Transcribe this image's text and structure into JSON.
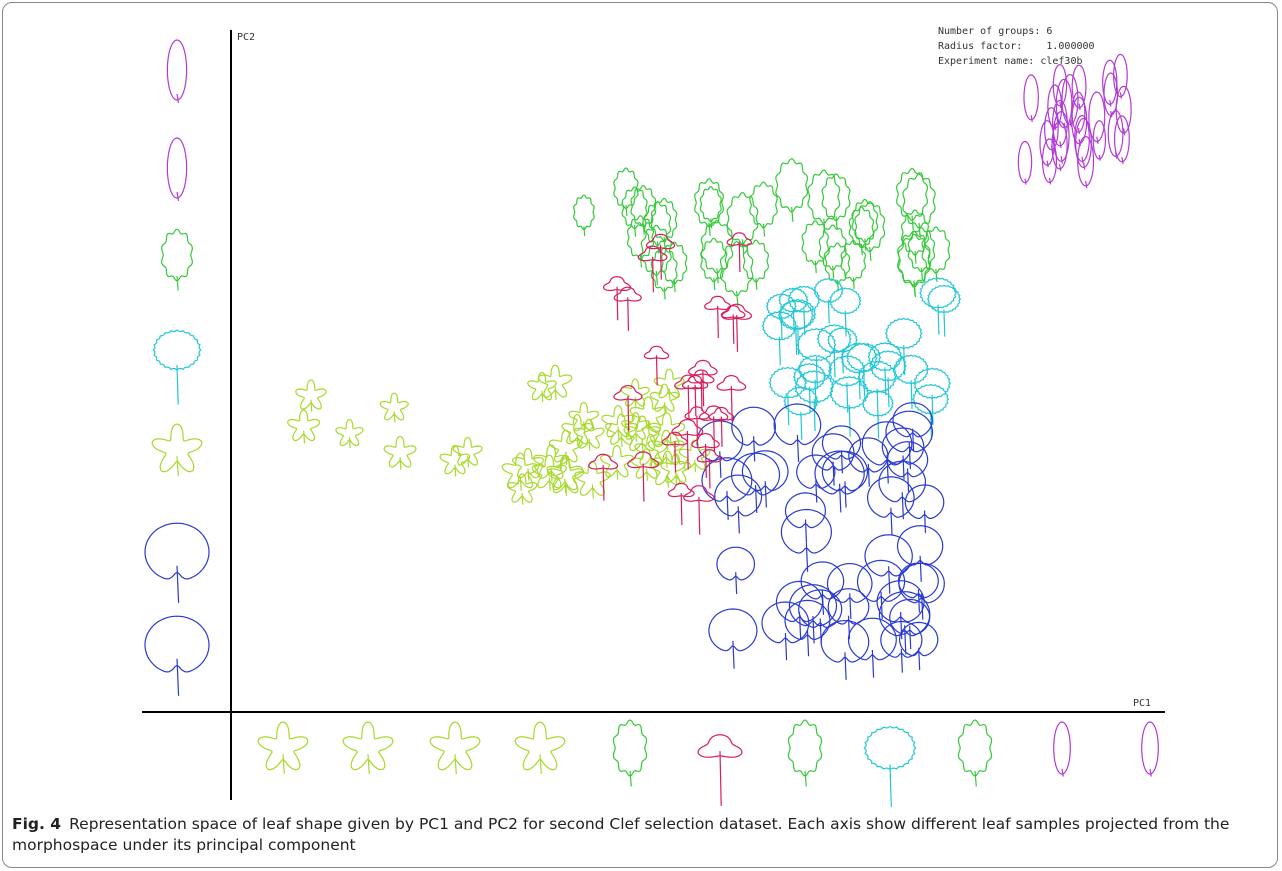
{
  "figure": {
    "axis_labels": {
      "y": "PC2",
      "x": "PC1"
    },
    "info": [
      "Number of groups: 6",
      "Radius factor:    1.000000",
      "Experiment name: clef30b"
    ]
  },
  "caption": {
    "label": "Fig. 4",
    "text": "Representation space of leaf shape given by PC1 and PC2 for second Clef selection dataset. Each axis show different leaf samples projected from the morphospace under its principal component"
  }
}
